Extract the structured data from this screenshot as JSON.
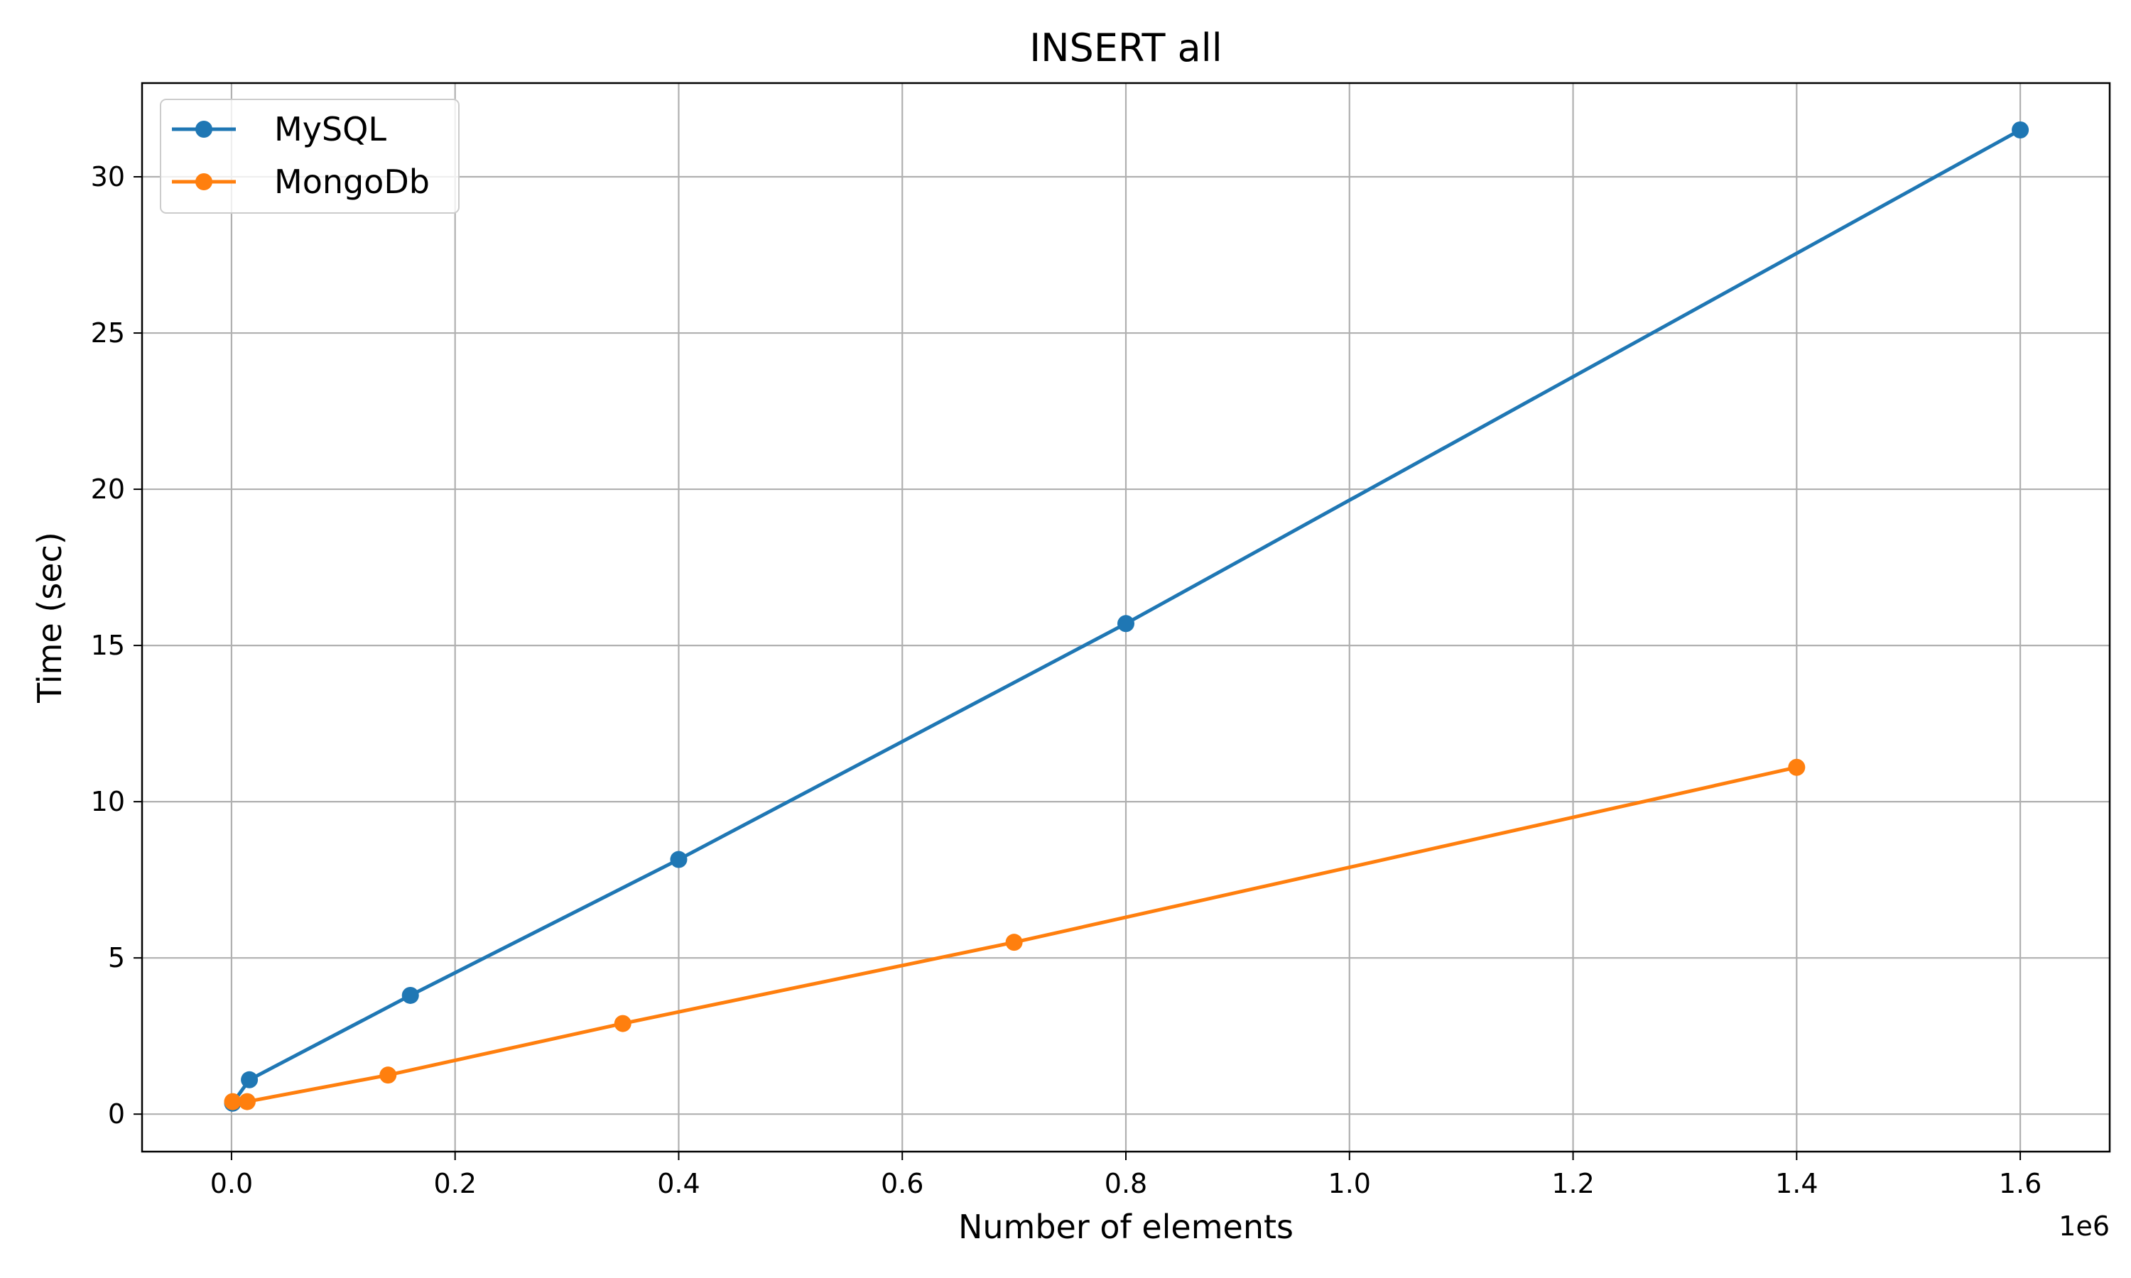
{
  "chart_data": {
    "type": "line",
    "title": "INSERT all",
    "xlabel": "Number of elements",
    "ylabel": "Time (sec)",
    "x_offset_label": "1e6",
    "xlim": [
      -0.08,
      1.68
    ],
    "ylim": [
      -1.2,
      33.0
    ],
    "x_ticks": [
      0.0,
      0.2,
      0.4,
      0.6,
      0.8,
      1.0,
      1.2,
      1.4,
      1.6
    ],
    "x_tick_labels": [
      "0.0",
      "0.2",
      "0.4",
      "0.6",
      "0.8",
      "1.0",
      "1.2",
      "1.4",
      "1.6"
    ],
    "y_ticks": [
      0,
      5,
      10,
      15,
      20,
      25,
      30
    ],
    "y_tick_labels": [
      "0",
      "5",
      "10",
      "15",
      "20",
      "25",
      "30"
    ],
    "grid": true,
    "legend_position": "top-left",
    "series": [
      {
        "name": "MySQL",
        "color": "#1f77b4",
        "x": [
          0.001,
          0.016,
          0.16,
          0.4,
          0.8,
          1.6
        ],
        "y": [
          0.35,
          1.1,
          3.8,
          8.15,
          15.7,
          31.5
        ]
      },
      {
        "name": "MongoDb",
        "color": "#ff7f0e",
        "x": [
          0.001,
          0.014,
          0.14,
          0.35,
          0.7,
          1.4
        ],
        "y": [
          0.4,
          0.4,
          1.25,
          2.9,
          5.5,
          11.1
        ]
      }
    ]
  }
}
